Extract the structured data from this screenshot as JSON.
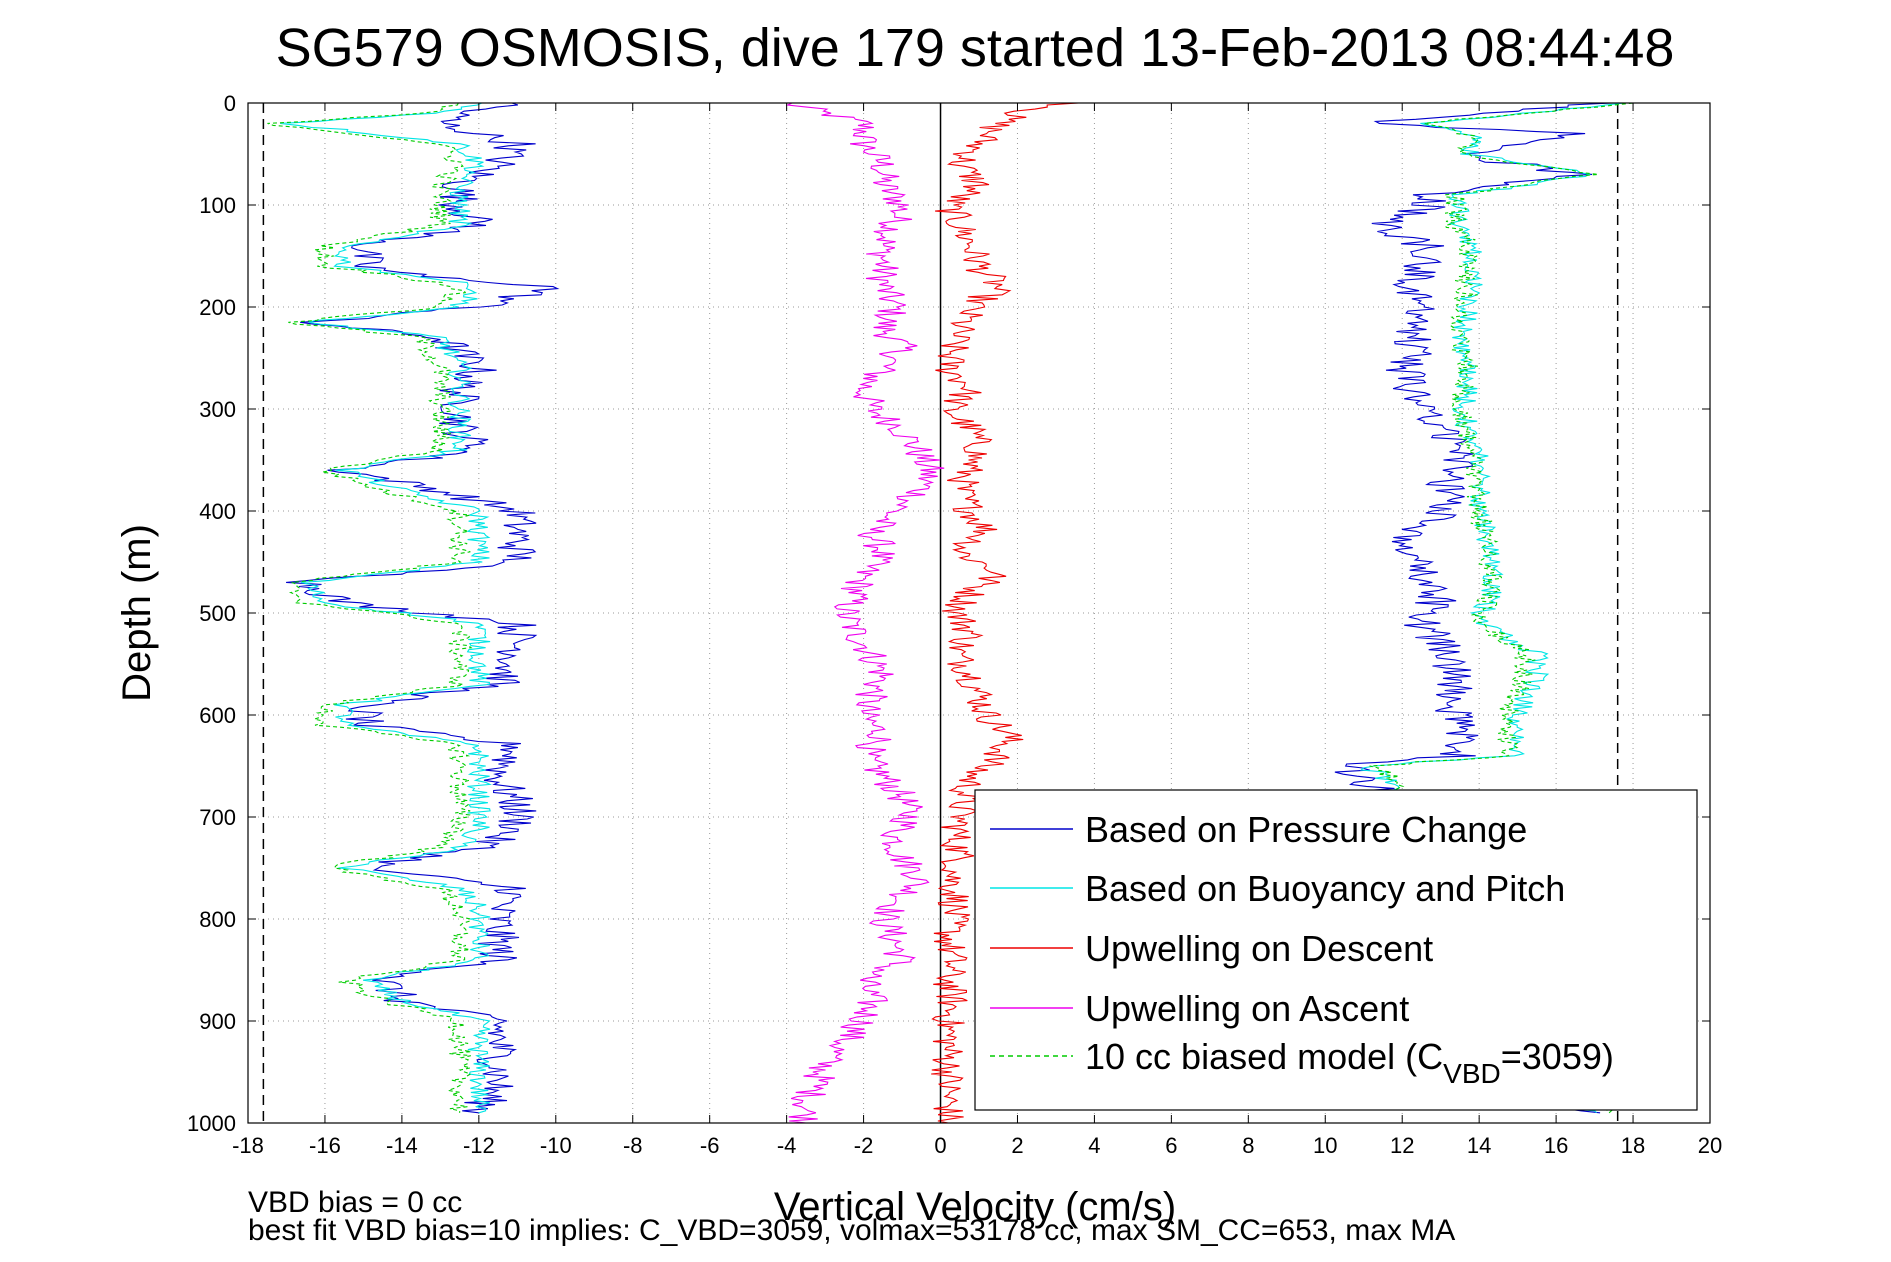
{
  "chart_data": {
    "type": "line",
    "title": "SG579 OSMOSIS, dive 179 started 13-Feb-2013 08:44:48",
    "xlabel": "Vertical Velocity (cm/s)",
    "ylabel": "Depth (m)",
    "xlim": [
      -18,
      20
    ],
    "ylim": [
      0,
      1000
    ],
    "y_reversed": true,
    "grid": true,
    "legend_position": "bottom-right",
    "x_ticks": [
      "-18",
      "-16",
      "-14",
      "-12",
      "-10",
      "-8",
      "-6",
      "-4",
      "-2",
      "0",
      "2",
      "4",
      "6",
      "8",
      "10",
      "12",
      "14",
      "16",
      "18",
      "20"
    ],
    "y_ticks": [
      "0",
      "100",
      "200",
      "300",
      "400",
      "500",
      "600",
      "700",
      "800",
      "900",
      "1000"
    ],
    "vertical_lines": [
      {
        "x": -17.6,
        "style": "dashed",
        "color": "#000000"
      },
      {
        "x": 0,
        "style": "solid",
        "color": "#000000"
      },
      {
        "x": 17.6,
        "style": "dashed",
        "color": "#000000"
      }
    ],
    "series": [
      {
        "name": "Based on Pressure Change",
        "color": "#0000cc",
        "style": "solid",
        "descent": {
          "depth": [
            0,
            10,
            20,
            40,
            60,
            80,
            100,
            120,
            140,
            160,
            170,
            180,
            200,
            215,
            230,
            260,
            280,
            300,
            320,
            340,
            360,
            380,
            400,
            430,
            450,
            470,
            490,
            510,
            540,
            570,
            590,
            610,
            630,
            660,
            690,
            710,
            730,
            750,
            770,
            790,
            810,
            840,
            860,
            880,
            900,
            930,
            960,
            990
          ],
          "v": [
            -11,
            -12.5,
            -13,
            -11,
            -11.5,
            -12.5,
            -12.5,
            -12,
            -15,
            -15,
            -13.5,
            -10,
            -12,
            -16.5,
            -13,
            -12,
            -12.5,
            -12.5,
            -12.5,
            -12,
            -15.5,
            -13,
            -11,
            -11,
            -11,
            -16.5,
            -15.5,
            -11,
            -11,
            -11.5,
            -15,
            -15,
            -11,
            -11.5,
            -11,
            -11,
            -12,
            -15,
            -11,
            -11.5,
            -11.5,
            -11.5,
            -14.5,
            -14,
            -11.5,
            -11.5,
            -11.5,
            -12
          ]
        },
        "ascent": {
          "depth": [
            990,
            960,
            930,
            900,
            880,
            860,
            840,
            800,
            780,
            760,
            740,
            720,
            700,
            680,
            660,
            650,
            640,
            620,
            600,
            560,
            540,
            510,
            480,
            460,
            430,
            400,
            370,
            340,
            320,
            300,
            280,
            260,
            240,
            220,
            200,
            180,
            160,
            140,
            120,
            100,
            90,
            70,
            50,
            30,
            20,
            0
          ],
          "v": [
            17,
            13.5,
            13.5,
            13.5,
            13.8,
            13.6,
            13.5,
            13.7,
            13.6,
            13.6,
            13.4,
            13.5,
            13.5,
            11.5,
            11,
            10.5,
            13.5,
            13.5,
            13.3,
            13.3,
            13.3,
            12.5,
            13,
            12.5,
            12.2,
            13,
            13.2,
            13.5,
            13.1,
            12.5,
            12.2,
            12.1,
            12.3,
            12.4,
            12.6,
            12.2,
            12.4,
            12.6,
            11.5,
            12.7,
            12.8,
            16.5,
            13.5,
            16.5,
            11,
            17.5
          ]
        }
      },
      {
        "name": "Based on Buoyancy and Pitch",
        "color": "#00e5e5",
        "style": "solid",
        "descent": {
          "depth": [
            0,
            10,
            20,
            40,
            60,
            80,
            100,
            120,
            140,
            160,
            170,
            180,
            200,
            215,
            230,
            260,
            280,
            300,
            320,
            340,
            360,
            380,
            400,
            430,
            450,
            470,
            490,
            510,
            540,
            570,
            590,
            610,
            630,
            660,
            690,
            710,
            730,
            750,
            770,
            790,
            810,
            840,
            860,
            880,
            900,
            930,
            960,
            990
          ],
          "v": [
            -12,
            -13,
            -17,
            -12.5,
            -12,
            -12.5,
            -12.5,
            -12.5,
            -15.5,
            -15.5,
            -13.5,
            -12,
            -12.5,
            -16.5,
            -13,
            -12.5,
            -12.5,
            -12.5,
            -12.5,
            -12.5,
            -15.5,
            -14,
            -12,
            -12,
            -12,
            -16.5,
            -16,
            -12,
            -12,
            -12,
            -15.5,
            -15.5,
            -12,
            -12,
            -12,
            -12,
            -12.5,
            -15.5,
            -12.5,
            -12,
            -12,
            -12,
            -15,
            -14,
            -12,
            -12,
            -12,
            -12
          ]
        },
        "ascent": {
          "depth": [
            990,
            960,
            930,
            900,
            880,
            860,
            840,
            800,
            780,
            760,
            740,
            720,
            700,
            680,
            660,
            650,
            640,
            620,
            600,
            560,
            540,
            510,
            480,
            460,
            430,
            400,
            370,
            340,
            320,
            300,
            280,
            260,
            240,
            220,
            200,
            180,
            160,
            140,
            120,
            100,
            90,
            70,
            50,
            30,
            20,
            0
          ],
          "v": [
            17,
            14,
            14,
            14,
            14.2,
            14,
            14,
            14,
            14,
            14,
            13.8,
            13.9,
            13.9,
            12,
            11.5,
            11,
            15,
            15,
            15,
            15.5,
            15.5,
            14,
            14.3,
            14.3,
            14.2,
            14,
            14,
            14,
            13.7,
            13.6,
            13.7,
            13.8,
            13.6,
            13.6,
            13.7,
            13.8,
            13.7,
            13.8,
            13.5,
            13.5,
            13.5,
            17,
            13.8,
            13.8,
            12.5,
            17.8
          ]
        }
      },
      {
        "name": "Upwelling on Descent",
        "color": "#ee0000",
        "style": "solid",
        "depth": [
          0,
          10,
          20,
          40,
          60,
          80,
          100,
          120,
          140,
          160,
          180,
          200,
          220,
          240,
          260,
          280,
          300,
          320,
          340,
          360,
          380,
          400,
          420,
          440,
          460,
          480,
          500,
          520,
          540,
          560,
          580,
          600,
          620,
          640,
          660,
          680,
          700,
          720,
          740,
          760,
          780,
          800,
          820,
          840,
          860,
          880,
          900,
          920,
          940,
          960,
          980,
          1000
        ],
        "v": [
          3.5,
          2.0,
          1.5,
          1.0,
          0.5,
          1.0,
          0.2,
          0.5,
          0.8,
          1.0,
          1.5,
          0.8,
          0.5,
          0.3,
          0.2,
          0.8,
          0.2,
          0.8,
          1.0,
          0.7,
          0.5,
          0.8,
          1.2,
          0.5,
          1.5,
          0.8,
          0.4,
          0.8,
          0.4,
          0.8,
          1.0,
          1.2,
          1.8,
          1.5,
          0.8,
          0.6,
          0.5,
          0.4,
          0.5,
          0.3,
          0.4,
          0.3,
          0.2,
          0.3,
          0.2,
          0.3,
          0.2,
          0.2,
          0.2,
          0.2,
          0.2,
          0.2
        ]
      },
      {
        "name": "Upwelling on Ascent",
        "color": "#ee00ee",
        "style": "solid",
        "depth": [
          0,
          10,
          20,
          40,
          60,
          80,
          100,
          120,
          140,
          160,
          180,
          200,
          220,
          240,
          260,
          280,
          300,
          320,
          340,
          360,
          380,
          400,
          420,
          440,
          460,
          480,
          500,
          520,
          540,
          560,
          580,
          600,
          620,
          640,
          660,
          680,
          700,
          720,
          740,
          760,
          780,
          800,
          820,
          840,
          860,
          880,
          900,
          920,
          940,
          960,
          980,
          1000
        ],
        "v": [
          -4,
          -3,
          -2,
          -2,
          -1.5,
          -1.5,
          -1,
          -1.2,
          -1.5,
          -1.5,
          -1.5,
          -1.2,
          -1.5,
          -1.0,
          -1.5,
          -2.0,
          -1.8,
          -1.0,
          -0.6,
          -0.3,
          -0.5,
          -1.2,
          -1.8,
          -1.5,
          -2.0,
          -2.2,
          -2.5,
          -2.2,
          -1.8,
          -1.5,
          -1.8,
          -2.0,
          -1.5,
          -2.0,
          -1.5,
          -1.0,
          -0.8,
          -1.2,
          -1.0,
          -0.5,
          -1.0,
          -1.5,
          -1.2,
          -1.0,
          -2.0,
          -1.8,
          -2.0,
          -2.5,
          -3.0,
          -3.2,
          -3.5,
          -3.5
        ]
      },
      {
        "name": "10 cc biased model (C",
        "legend_subscript": "VBD",
        "legend_suffix": "=3059)",
        "color": "#00cc00",
        "style": "dashed",
        "descent": {
          "depth": [
            0,
            10,
            20,
            40,
            60,
            80,
            100,
            120,
            140,
            160,
            170,
            180,
            200,
            215,
            230,
            260,
            280,
            300,
            320,
            340,
            360,
            380,
            400,
            430,
            450,
            470,
            490,
            510,
            540,
            570,
            590,
            610,
            630,
            660,
            690,
            710,
            730,
            750,
            770,
            790,
            810,
            840,
            860,
            880,
            900,
            930,
            960,
            990
          ],
          "v": [
            -12.5,
            -13.5,
            -17.5,
            -13,
            -12.5,
            -13,
            -13,
            -13,
            -16,
            -16,
            -14,
            -12.5,
            -13,
            -17,
            -13.5,
            -13,
            -13,
            -13,
            -13,
            -13,
            -16,
            -14.5,
            -12.5,
            -12.5,
            -12.5,
            -17,
            -16.5,
            -12.5,
            -12.5,
            -12.5,
            -16,
            -16,
            -12.5,
            -12.5,
            -12.5,
            -12.5,
            -13,
            -16,
            -13,
            -12.5,
            -12.5,
            -12.5,
            -15.5,
            -14.5,
            -12.5,
            -12.5,
            -12.5,
            -12.5
          ]
        },
        "ascent": {
          "depth": [
            990,
            960,
            930,
            900,
            880,
            860,
            840,
            800,
            780,
            760,
            740,
            720,
            700,
            680,
            660,
            650,
            640,
            620,
            600,
            560,
            540,
            510,
            480,
            460,
            430,
            400,
            370,
            340,
            320,
            300,
            280,
            260,
            240,
            220,
            200,
            180,
            160,
            140,
            120,
            100,
            90,
            70,
            50,
            30,
            20,
            0
          ],
          "v": [
            17.5,
            14.2,
            14.2,
            14.2,
            14.4,
            14.2,
            14.2,
            14.2,
            14.2,
            14.2,
            14,
            14.1,
            14.1,
            12.2,
            11.7,
            11.2,
            14.7,
            14.7,
            14.7,
            15.2,
            15.2,
            14,
            14.3,
            14.3,
            14.2,
            14,
            13.9,
            13.9,
            13.6,
            13.5,
            13.6,
            13.7,
            13.5,
            13.5,
            13.6,
            13.7,
            13.6,
            13.7,
            13.4,
            13.4,
            13.4,
            16.8,
            13.7,
            13.7,
            12.5,
            18
          ]
        }
      }
    ],
    "annotations": [
      "VBD bias = 0 cc",
      "best fit VBD bias=10 implies: C_VBD=3059, volmax=53178 cc, max SM_CC=653, max MA"
    ]
  }
}
